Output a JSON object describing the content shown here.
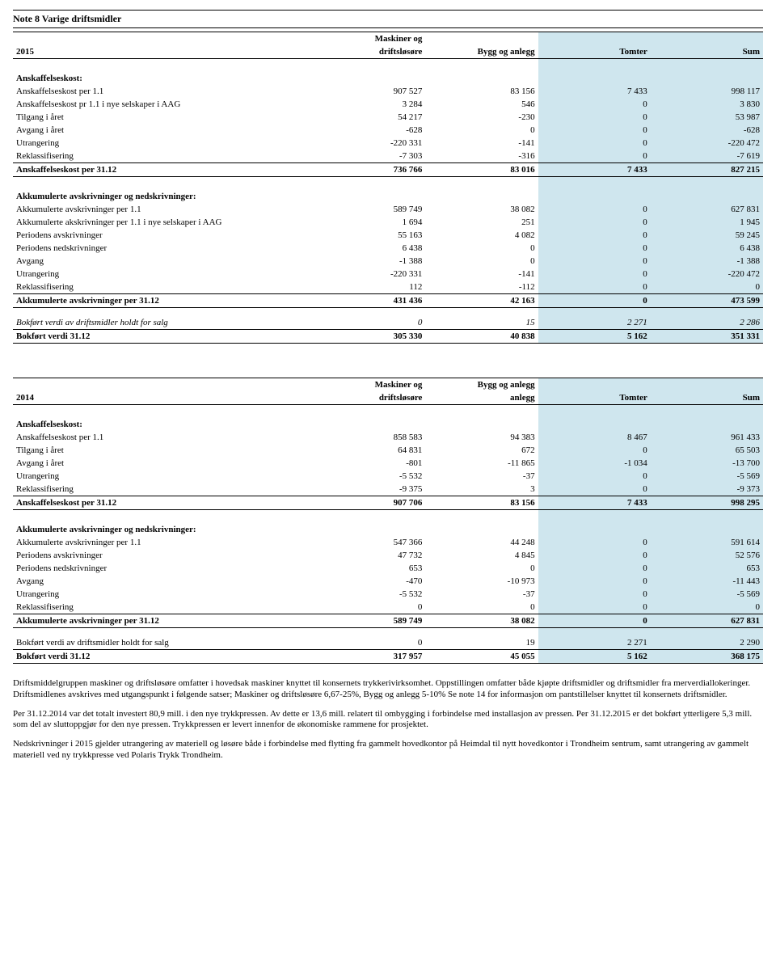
{
  "title": "Note 8 Varige driftsmidler",
  "colors": {
    "highlight": "#cfe6ee",
    "text": "#000000",
    "bg": "#ffffff"
  },
  "fonts": {
    "family": "Times New Roman",
    "body_pt": 11,
    "title_pt": 12
  },
  "columns": {
    "c1_top": "Maskiner og",
    "c1_bot": "driftsløsøre",
    "c2a": "Bygg og anlegg",
    "c2b_top": "Bygg og anlegg",
    "c2b_bot": "anlegg",
    "c3": "Tomter",
    "c4": "Sum"
  },
  "t2015": {
    "year": "2015",
    "sec_ansk": "Anskaffelseskost:",
    "rows_ansk": [
      {
        "l": "Anskaffelseskost per 1.1",
        "a": "907 527",
        "b": "83 156",
        "c": "7 433",
        "d": "998 117"
      },
      {
        "l": "Anskaffelseskost pr 1.1 i nye selskaper i AAG",
        "a": "3 284",
        "b": "546",
        "c": "0",
        "d": "3 830"
      },
      {
        "l": "Tilgang i året",
        "a": "54 217",
        "b": "-230",
        "c": "0",
        "d": "53 987"
      },
      {
        "l": "Avgang i året",
        "a": "-628",
        "b": "0",
        "c": "0",
        "d": "-628"
      },
      {
        "l": "Utrangering",
        "a": "-220 331",
        "b": "-141",
        "c": "0",
        "d": "-220 472"
      },
      {
        "l": "Reklassifisering",
        "a": "-7 303",
        "b": "-316",
        "c": "0",
        "d": "-7 619"
      }
    ],
    "tot_ansk": {
      "l": "Anskaffelseskost per 31.12",
      "a": "736 766",
      "b": "83 016",
      "c": "7 433",
      "d": "827 215"
    },
    "sec_akk": "Akkumulerte avskrivninger og nedskrivninger:",
    "rows_akk": [
      {
        "l": "Akkumulerte avskrivninger per 1.1",
        "a": "589 749",
        "b": "38 082",
        "c": "0",
        "d": "627 831"
      },
      {
        "l": "Akkumulerte akskrivninger per 1.1 i nye selskaper i AAG",
        "a": "1 694",
        "b": "251",
        "c": "0",
        "d": "1 945"
      },
      {
        "l": "Periodens avskrivninger",
        "a": "55 163",
        "b": "4 082",
        "c": "0",
        "d": "59 245"
      },
      {
        "l": "Periodens nedskrivninger",
        "a": "6 438",
        "b": "0",
        "c": "0",
        "d": "6 438"
      },
      {
        "l": "Avgang",
        "a": "-1 388",
        "b": "0",
        "c": "0",
        "d": "-1 388"
      },
      {
        "l": "Utrangering",
        "a": "-220 331",
        "b": "-141",
        "c": "0",
        "d": "-220 472"
      },
      {
        "l": "Reklassifisering",
        "a": "112",
        "b": "-112",
        "c": "0",
        "d": "0"
      }
    ],
    "tot_akk": {
      "l": "Akkumulerte avskrivninger per 31.12",
      "a": "431 436",
      "b": "42 163",
      "c": "0",
      "d": "473 599"
    },
    "held": {
      "l": "Bokført verdi av driftsmidler holdt for salg",
      "a": "0",
      "b": "15",
      "c": "2 271",
      "d": "2 286"
    },
    "book": {
      "l": "Bokført verdi 31.12",
      "a": "305 330",
      "b": "40 838",
      "c": "5 162",
      "d": "351 331"
    }
  },
  "t2014": {
    "year": "2014",
    "sec_ansk": "Anskaffelseskost:",
    "rows_ansk": [
      {
        "l": "Anskaffelseskost per 1.1",
        "a": "858 583",
        "b": "94 383",
        "c": "8 467",
        "d": "961 433"
      },
      {
        "l": "Tilgang i året",
        "a": "64 831",
        "b": "672",
        "c": "0",
        "d": "65 503"
      },
      {
        "l": "Avgang i året",
        "a": "-801",
        "b": "-11 865",
        "c": "-1 034",
        "d": "-13 700"
      },
      {
        "l": "Utrangering",
        "a": "-5 532",
        "b": "-37",
        "c": "0",
        "d": "-5 569"
      },
      {
        "l": "Reklassifisering",
        "a": "-9 375",
        "b": "3",
        "c": "0",
        "d": "-9 373"
      }
    ],
    "tot_ansk": {
      "l": "Anskaffelseskost per 31.12",
      "a": "907 706",
      "b": "83 156",
      "c": "7 433",
      "d": "998 295"
    },
    "sec_akk": "Akkumulerte avskrivninger og nedskrivninger:",
    "rows_akk": [
      {
        "l": "Akkumulerte avskrivninger per 1.1",
        "a": "547 366",
        "b": "44 248",
        "c": "0",
        "d": "591 614"
      },
      {
        "l": "Periodens avskrivninger",
        "a": "47 732",
        "b": "4 845",
        "c": "0",
        "d": "52 576"
      },
      {
        "l": "Periodens nedskrivninger",
        "a": "653",
        "b": "0",
        "c": "0",
        "d": "653"
      },
      {
        "l": "Avgang",
        "a": "-470",
        "b": "-10 973",
        "c": "0",
        "d": "-11 443"
      },
      {
        "l": "Utrangering",
        "a": "-5 532",
        "b": "-37",
        "c": "0",
        "d": "-5 569"
      },
      {
        "l": "Reklassifisering",
        "a": "0",
        "b": "0",
        "c": "0",
        "d": "0"
      }
    ],
    "tot_akk": {
      "l": "Akkumulerte avskrivninger per 31.12",
      "a": "589 749",
      "b": "38 082",
      "c": "0",
      "d": "627 831"
    },
    "held": {
      "l": "Bokført verdi av driftsmidler holdt for salg",
      "a": "0",
      "b": "19",
      "c": "2 271",
      "d": "2 290"
    },
    "book": {
      "l": "Bokført verdi 31.12",
      "a": "317 957",
      "b": "45 055",
      "c": "5 162",
      "d": "368 175"
    }
  },
  "footnotes": [
    "Driftsmiddelgruppen maskiner og driftsløsøre omfatter i hovedsak maskiner knyttet til konsernets trykkerivirksomhet. Oppstillingen omfatter både kjøpte driftsmidler og driftsmidler fra merverdiallokeringer. Driftsmidlenes avskrives med utgangspunkt i følgende satser; Maskiner og driftsløsøre 6,67-25%, Bygg og anlegg 5-10% Se note 14 for informasjon om pantstillelser knyttet til konsernets driftsmidler.",
    "Per 31.12.2014 var det totalt investert 80,9 mill. i den nye trykkpressen. Av dette er 13,6 mill. relatert til ombygging i forbindelse med installasjon av pressen. Per 31.12.2015 er det bokført ytterligere 5,3 mill. som del av sluttoppgjør for den nye pressen. Trykkpressen er levert innenfor de økonomiske rammene for prosjektet.",
    "Nedskrivninger i 2015 gjelder utrangering av materiell og løsøre både i forbindelse med flytting fra gammelt hovedkontor på Heimdal til nytt hovedkontor i Trondheim sentrum, samt utrangering av gammelt materiell ved ny trykkpresse ved Polaris Trykk Trondheim."
  ]
}
